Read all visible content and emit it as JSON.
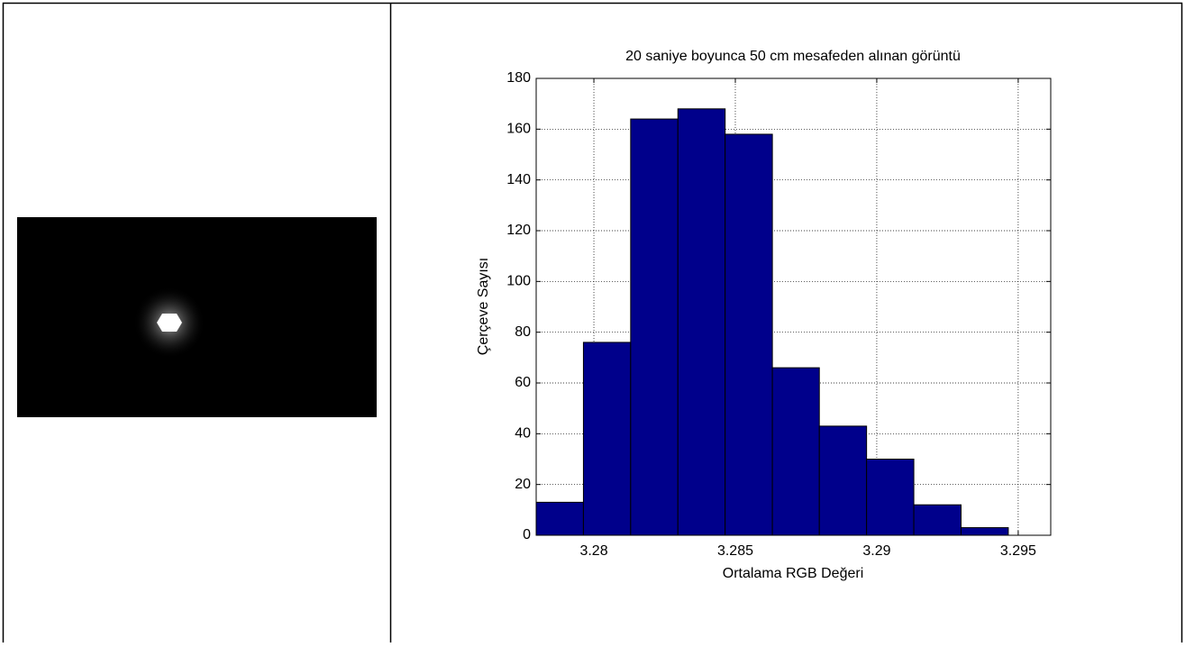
{
  "chart_data": {
    "type": "histogram",
    "title": "20 saniye  boyunca 50 cm mesafeden alınan görüntü",
    "xlabel": "Ortalama RGB Değeri",
    "ylabel": "Çerçeve Sayısı",
    "bins": [
      3.27796,
      3.27963,
      3.2813,
      3.28297,
      3.28464,
      3.28631,
      3.28797,
      3.28964,
      3.29131,
      3.29298,
      3.29465
    ],
    "values": [
      13,
      76,
      164,
      168,
      158,
      66,
      43,
      30,
      12,
      3
    ],
    "color": "#00008b",
    "xlim": [
      3.27796,
      3.29615
    ],
    "xticks": [
      3.28,
      3.285,
      3.29,
      3.295
    ],
    "ylim": [
      0,
      180
    ],
    "yticks": [
      0,
      20,
      40,
      60,
      80,
      100,
      120,
      140,
      160,
      180
    ],
    "grid": true
  }
}
